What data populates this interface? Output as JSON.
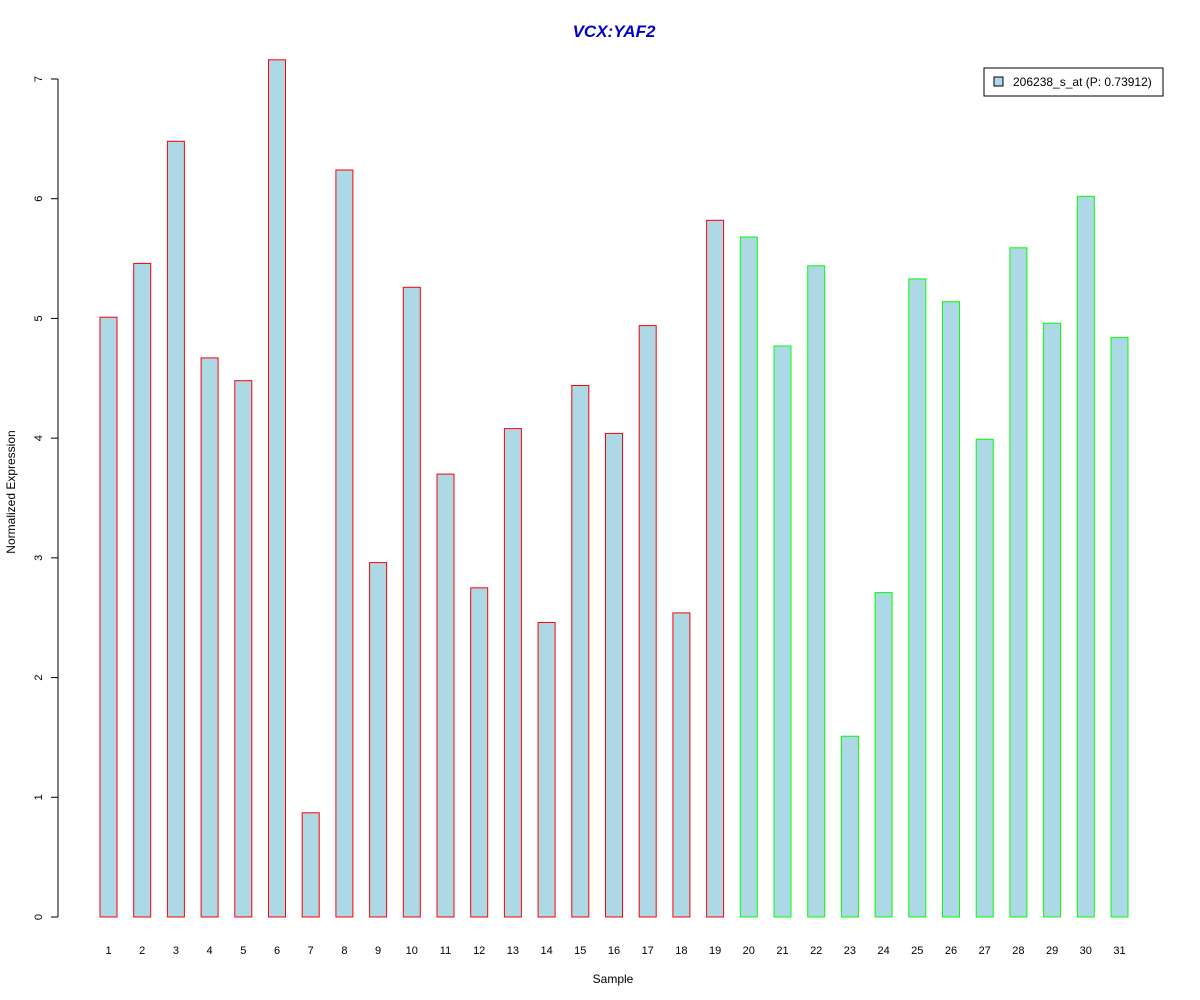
{
  "colors": {
    "title": "#0000cc",
    "bar_fill": "#add8e6",
    "group1_border": "#ff0000",
    "group2_border": "#00ff00",
    "axis": "#000000"
  },
  "chart_data": {
    "type": "bar",
    "title": "VCX:YAF2",
    "xlabel": "Sample",
    "ylabel": "Normalized Expression",
    "ylim": [
      0,
      7
    ],
    "yticks": [
      0,
      1,
      2,
      3,
      4,
      5,
      6,
      7
    ],
    "grid": false,
    "legend_position": "top-right",
    "categories": [
      "1",
      "2",
      "3",
      "4",
      "5",
      "6",
      "7",
      "8",
      "9",
      "10",
      "11",
      "12",
      "13",
      "14",
      "15",
      "16",
      "17",
      "18",
      "19",
      "20",
      "21",
      "22",
      "23",
      "24",
      "25",
      "26",
      "27",
      "28",
      "29",
      "30",
      "31"
    ],
    "series": [
      {
        "name": "206238_s_at (P: 0.73912)",
        "values": [
          5.01,
          5.46,
          6.48,
          4.67,
          4.48,
          7.16,
          0.87,
          6.24,
          2.96,
          5.26,
          3.7,
          2.75,
          4.08,
          2.46,
          4.44,
          4.04,
          4.94,
          2.54,
          5.82,
          5.68,
          4.77,
          5.44,
          1.51,
          2.71,
          5.33,
          5.14,
          3.99,
          5.59,
          4.96,
          6.02,
          4.84
        ],
        "groups": [
          1,
          1,
          1,
          1,
          1,
          1,
          1,
          1,
          1,
          1,
          1,
          1,
          1,
          1,
          1,
          1,
          1,
          1,
          1,
          2,
          2,
          2,
          2,
          2,
          2,
          2,
          2,
          2,
          2,
          2,
          2
        ]
      }
    ]
  }
}
